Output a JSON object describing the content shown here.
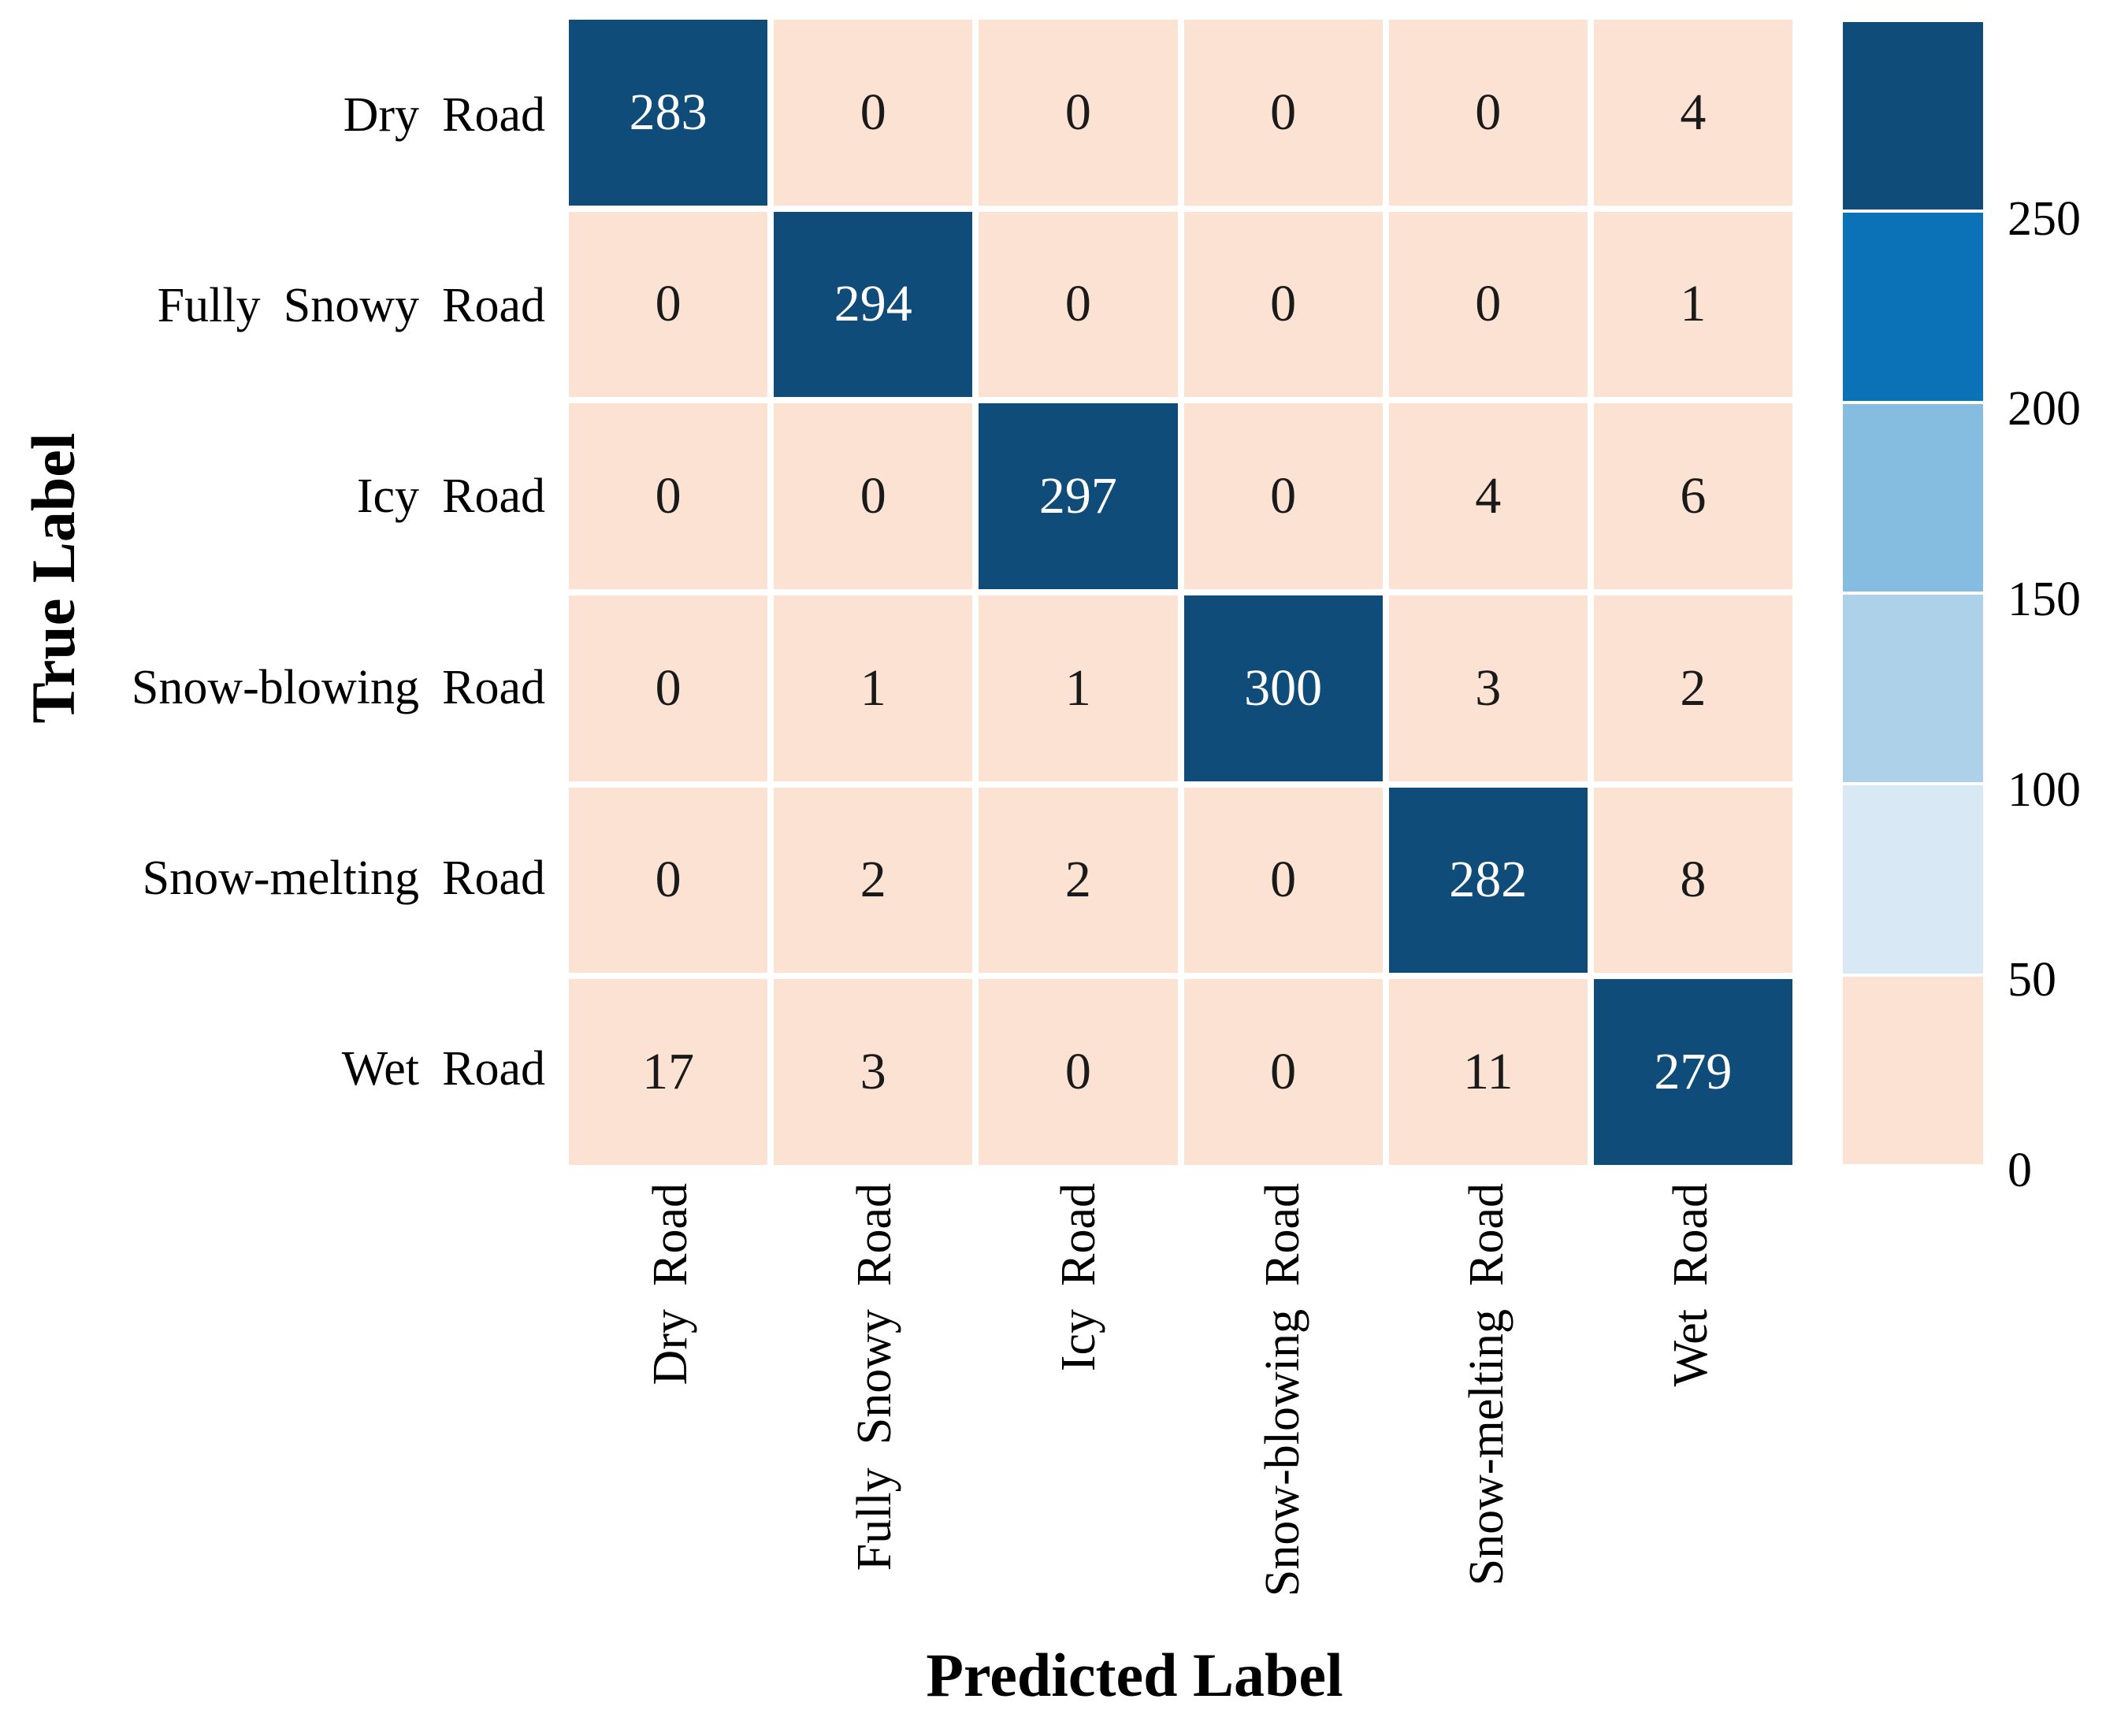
{
  "chart_data": {
    "type": "heatmap",
    "title": "",
    "xlabel": "Predicted Label",
    "ylabel": "True Label",
    "categories": [
      "Dry Road",
      "Fully Snowy Road",
      "Icy Road",
      "Snow-blowing Road",
      "Snow-melting Road",
      "Wet Road"
    ],
    "matrix": [
      [
        283,
        0,
        0,
        0,
        0,
        4
      ],
      [
        0,
        294,
        0,
        0,
        0,
        1
      ],
      [
        0,
        0,
        297,
        0,
        4,
        6
      ],
      [
        0,
        1,
        1,
        300,
        3,
        2
      ],
      [
        0,
        2,
        2,
        0,
        282,
        8
      ],
      [
        17,
        3,
        0,
        0,
        11,
        279
      ]
    ],
    "value_range": [
      0,
      300
    ],
    "grid_gap_color": "#ffffff",
    "colorbar": {
      "position": "right",
      "tick_labels": [
        "250",
        "200",
        "150",
        "100",
        "50",
        "0"
      ],
      "bands": [
        {
          "min": 250,
          "max": 300,
          "color": "#0f4c7a"
        },
        {
          "min": 200,
          "max": 250,
          "color": "#0b72b8"
        },
        {
          "min": 150,
          "max": 200,
          "color": "#85bde1"
        },
        {
          "min": 100,
          "max": 150,
          "color": "#aed1ea"
        },
        {
          "min": 50,
          "max": 100,
          "color": "#d9e8f5"
        },
        {
          "min": 0,
          "max": 50,
          "color": "#fbe2d2"
        }
      ]
    },
    "text_colors": {
      "on_dark": "#ffffff",
      "on_light": "#1a1a1a"
    },
    "dark_text_threshold": 200
  }
}
